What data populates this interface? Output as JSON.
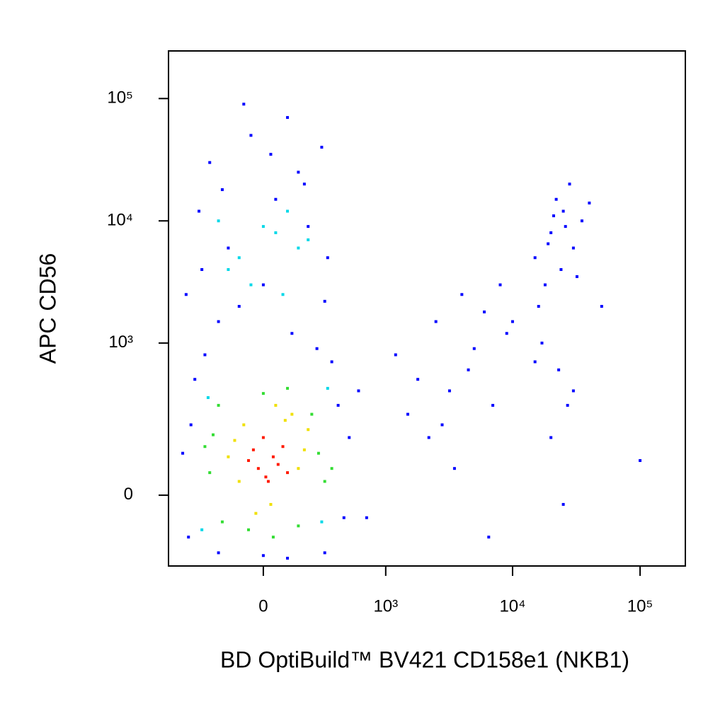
{
  "chart_data": {
    "type": "scatter",
    "xlabel": "BD OptiBuild™ BV421 CD158e1 (NKB1)",
    "ylabel": "APC CD56",
    "xscale": "biexponential",
    "yscale": "biexponential",
    "xlim": [
      -595,
      226500
    ],
    "ylim": [
      -202,
      245000
    ],
    "xticks": [
      {
        "value": 0,
        "label": "0"
      },
      {
        "value": 1000,
        "label": "10³"
      },
      {
        "value": 10000,
        "label": "10⁴"
      },
      {
        "value": 100000,
        "label": "10⁵"
      }
    ],
    "yticks": [
      {
        "value": 0,
        "label": "0"
      },
      {
        "value": 1000,
        "label": "10³"
      },
      {
        "value": 10000,
        "label": "10⁴"
      },
      {
        "value": 100000,
        "label": "10⁵"
      }
    ],
    "series": [
      {
        "color": "#0000ff",
        "x": [
          -350,
          -280,
          -200,
          -100,
          0,
          120,
          250,
          300,
          -300,
          -150,
          50,
          180,
          -250,
          -50,
          100,
          280,
          -320,
          200,
          -380,
          400,
          500,
          600,
          -450,
          450,
          -400,
          300,
          -200,
          100,
          0,
          350,
          -420,
          320,
          150,
          -180,
          30,
          -80,
          1200,
          1800,
          2500,
          3200,
          4000,
          5000,
          6000,
          7000,
          8000,
          9000,
          1500,
          2200,
          3500,
          700,
          6500,
          2800,
          4500,
          10000,
          100000,
          15000,
          20000,
          25000,
          30000,
          18000,
          22000,
          28000,
          35000,
          16000,
          24000,
          32000,
          26000,
          21000,
          19000,
          40000,
          50000,
          17000,
          23000,
          27000,
          20000,
          25000,
          15000,
          30000
        ],
        "y": [
          500,
          800,
          1500,
          2000,
          3000,
          1200,
          900,
          2200,
          4000,
          6000,
          15000,
          20000,
          30000,
          50000,
          70000,
          40000,
          12000,
          9000,
          200,
          300,
          150,
          400,
          100,
          -50,
          -100,
          -150,
          -150,
          -170,
          -160,
          700,
          2500,
          5000,
          25000,
          18000,
          35000,
          90000,
          800,
          500,
          1500,
          400,
          2500,
          900,
          1800,
          300,
          3000,
          1200,
          250,
          150,
          60,
          -50,
          -100,
          200,
          600,
          1500,
          80,
          5000,
          8000,
          12000,
          6000,
          3000,
          15000,
          20000,
          10000,
          2000,
          4000,
          3500,
          9000,
          11000,
          6500,
          14000,
          2000,
          1000,
          600,
          300,
          150,
          -20,
          700,
          400
        ]
      },
      {
        "color": "#00d8e8",
        "x": [
          -100,
          50,
          150,
          -50,
          100,
          -150,
          0,
          200,
          -200,
          80,
          -300,
          280,
          -260,
          320
        ],
        "y": [
          5000,
          8000,
          6000,
          3000,
          12000,
          4000,
          9000,
          7000,
          10000,
          2500,
          -80,
          -60,
          350,
          420
        ]
      },
      {
        "color": "#33dd33",
        "x": [
          -250,
          260,
          -200,
          300,
          -180,
          220,
          0,
          -60,
          150,
          -230,
          100,
          -280,
          350,
          40
        ],
        "y": [
          50,
          100,
          300,
          30,
          -60,
          250,
          380,
          -80,
          -70,
          160,
          420,
          120,
          60,
          -100
        ]
      },
      {
        "color": "#f0e000",
        "x": [
          -120,
          150,
          -80,
          200,
          30,
          -150,
          120,
          -30,
          90,
          180,
          -100,
          50
        ],
        "y": [
          140,
          60,
          200,
          180,
          -20,
          90,
          250,
          -40,
          220,
          110,
          30,
          300
        ]
      },
      {
        "color": "#ff1a00",
        "x": [
          -20,
          40,
          10,
          80,
          -60,
          20,
          60,
          0,
          -40,
          100
        ],
        "y": [
          60,
          90,
          40,
          120,
          80,
          30,
          70,
          150,
          110,
          50
        ]
      }
    ]
  }
}
